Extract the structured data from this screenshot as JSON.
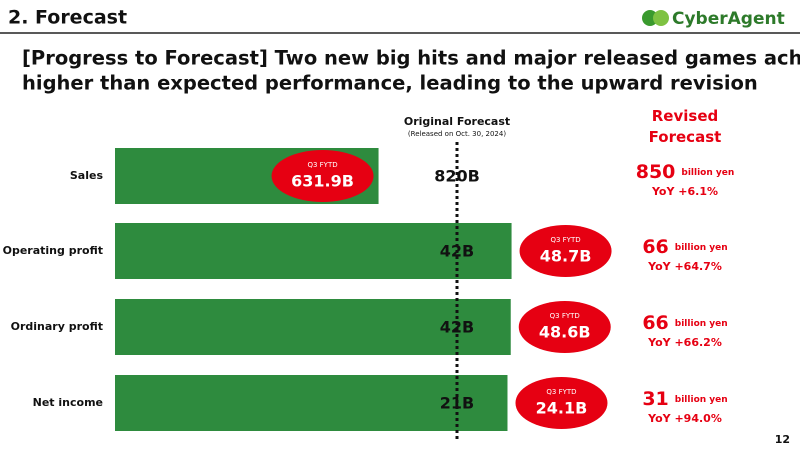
{
  "header": {
    "section": "2.  Forecast",
    "logo": "CyberAgent",
    "title_lines": [
      "[Progress to Forecast]  Two new big hits and major released games achieved",
      "higher than expected performance, leading to the upward revision"
    ]
  },
  "chart_data": {
    "type": "bar",
    "orientation": "horizontal",
    "categories": [
      "Sales",
      "Operating profit",
      "Ordinary profit",
      "Net income"
    ],
    "values": [
      631.9,
      48.7,
      48.6,
      24.1
    ],
    "value_labels": [
      "631.9B",
      "48.7B",
      "48.6B",
      "24.1B"
    ],
    "value_caption": "Q3 FYTD",
    "color": "#2e8b3e",
    "forecast": {
      "title": "Original Forecast",
      "subtitle": "(Released on Oct. 30, 2024)",
      "values": [
        820,
        42,
        42,
        21
      ],
      "value_labels": [
        "820B",
        "42B",
        "42B",
        "21B"
      ]
    }
  },
  "revised": {
    "title": "Revised Forecast",
    "values": [
      850,
      66,
      66,
      31
    ],
    "unit": "billion yen",
    "yoy": [
      "YoY +6.1%",
      "YoY +64.7%",
      "YoY +66.2%",
      "YoY +94.0%"
    ]
  },
  "page_number": "12"
}
